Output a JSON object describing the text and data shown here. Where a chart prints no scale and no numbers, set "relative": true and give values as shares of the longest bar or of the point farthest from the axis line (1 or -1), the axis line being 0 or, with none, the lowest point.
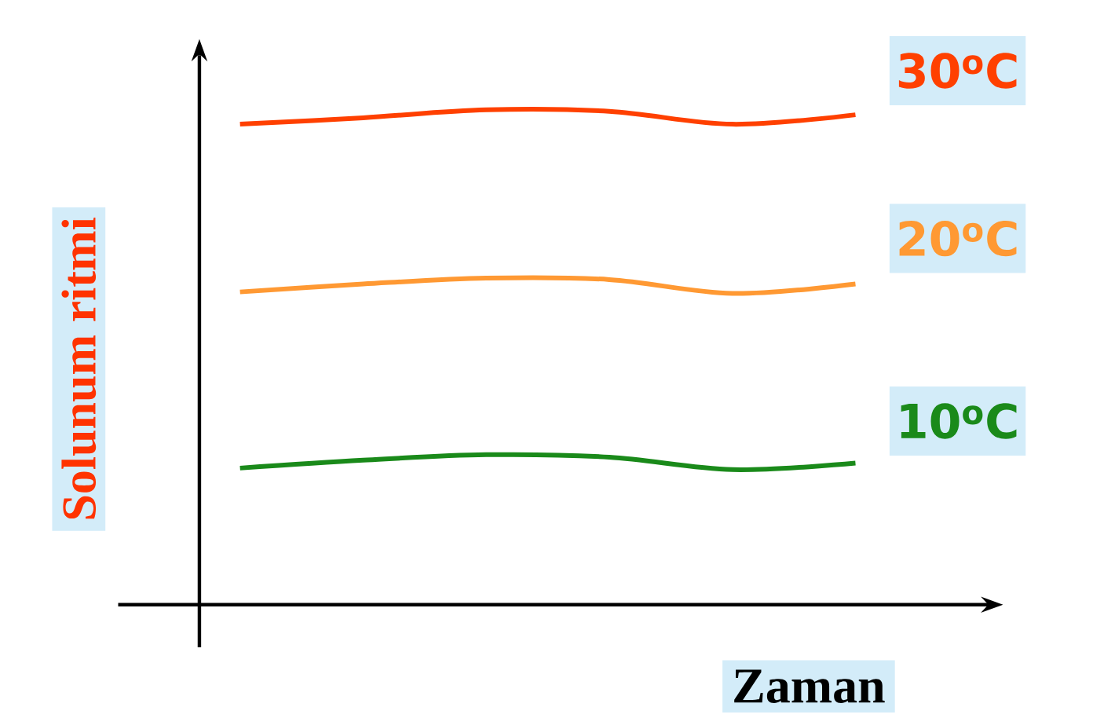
{
  "chart_data": {
    "type": "line",
    "relative": true,
    "xlabel": "Zaman",
    "ylabel": "Solunum ritmi",
    "categories": [
      null,
      null,
      null,
      null,
      null,
      null
    ],
    "series": [
      {
        "name": "30$^{o}$C",
        "color": "#ff4000",
        "values": [
          0.971,
          0.984,
          1,
          0.997,
          0.971,
          0.99
        ]
      },
      {
        "name": "20$^{o}$C",
        "color": "#ff9933",
        "values": [
          0.632,
          0.648,
          0.66,
          0.657,
          0.629,
          0.648
        ]
      },
      {
        "name": "10$^{o}$C",
        "color": "#1a8a1a",
        "values": [
          0.276,
          0.292,
          0.303,
          0.298,
          0.273,
          0.286
        ]
      }
    ]
  }
}
